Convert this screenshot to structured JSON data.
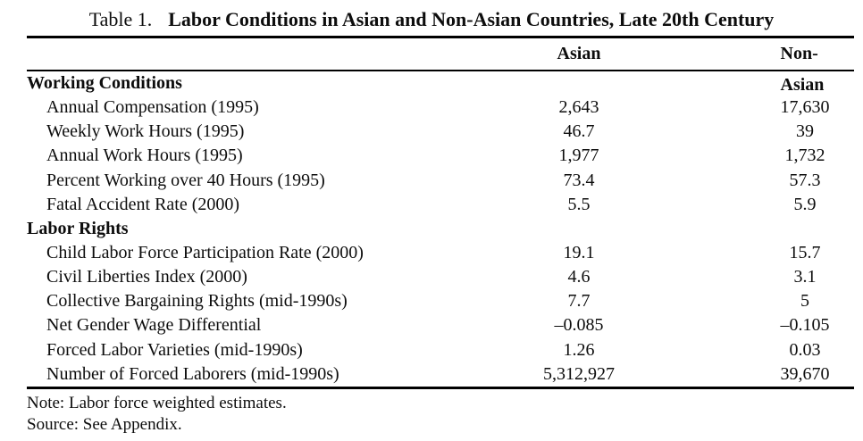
{
  "page": {
    "background": "#ffffff",
    "text_color": "#0d0d0d",
    "rule_color": "#000000"
  },
  "title": {
    "label": "Table 1.",
    "text": "Labor Conditions in Asian and Non-Asian Countries, Late 20th Century"
  },
  "columns": [
    {
      "key": "asian",
      "label": "Asian"
    },
    {
      "key": "non_asian",
      "label": "Non-Asian"
    }
  ],
  "sections": [
    {
      "heading": "Working Conditions",
      "rows": [
        {
          "label": "Annual Compensation (1995)",
          "asian": "2,643",
          "non_asian": "17,630"
        },
        {
          "label": "Weekly Work Hours (1995)",
          "asian": "46.7",
          "non_asian": "39"
        },
        {
          "label": "Annual Work Hours (1995)",
          "asian": "1,977",
          "non_asian": "1,732"
        },
        {
          "label": "Percent Working over 40 Hours (1995)",
          "asian": "73.4",
          "non_asian": "57.3"
        },
        {
          "label": "Fatal Accident Rate (2000)",
          "asian": "5.5",
          "non_asian": "5.9"
        }
      ]
    },
    {
      "heading": "Labor Rights",
      "rows": [
        {
          "label": "Child Labor Force Participation Rate (2000)",
          "asian": "19.1",
          "non_asian": "15.7"
        },
        {
          "label": "Civil Liberties Index (2000)",
          "asian": "4.6",
          "non_asian": "3.1"
        },
        {
          "label": "Collective Bargaining Rights (mid-1990s)",
          "asian": "7.7",
          "non_asian": "5"
        },
        {
          "label": "Net Gender Wage Differential",
          "asian": "–0.085",
          "non_asian": "–0.105"
        },
        {
          "label": "Forced Labor Varieties (mid-1990s)",
          "asian": "1.26",
          "non_asian": "0.03"
        },
        {
          "label": "Number of Forced Laborers (mid-1990s)",
          "asian": "5,312,927",
          "non_asian": "39,670"
        }
      ]
    }
  ],
  "notes": {
    "note": "Note: Labor force weighted estimates.",
    "source": "Source: See Appendix."
  }
}
